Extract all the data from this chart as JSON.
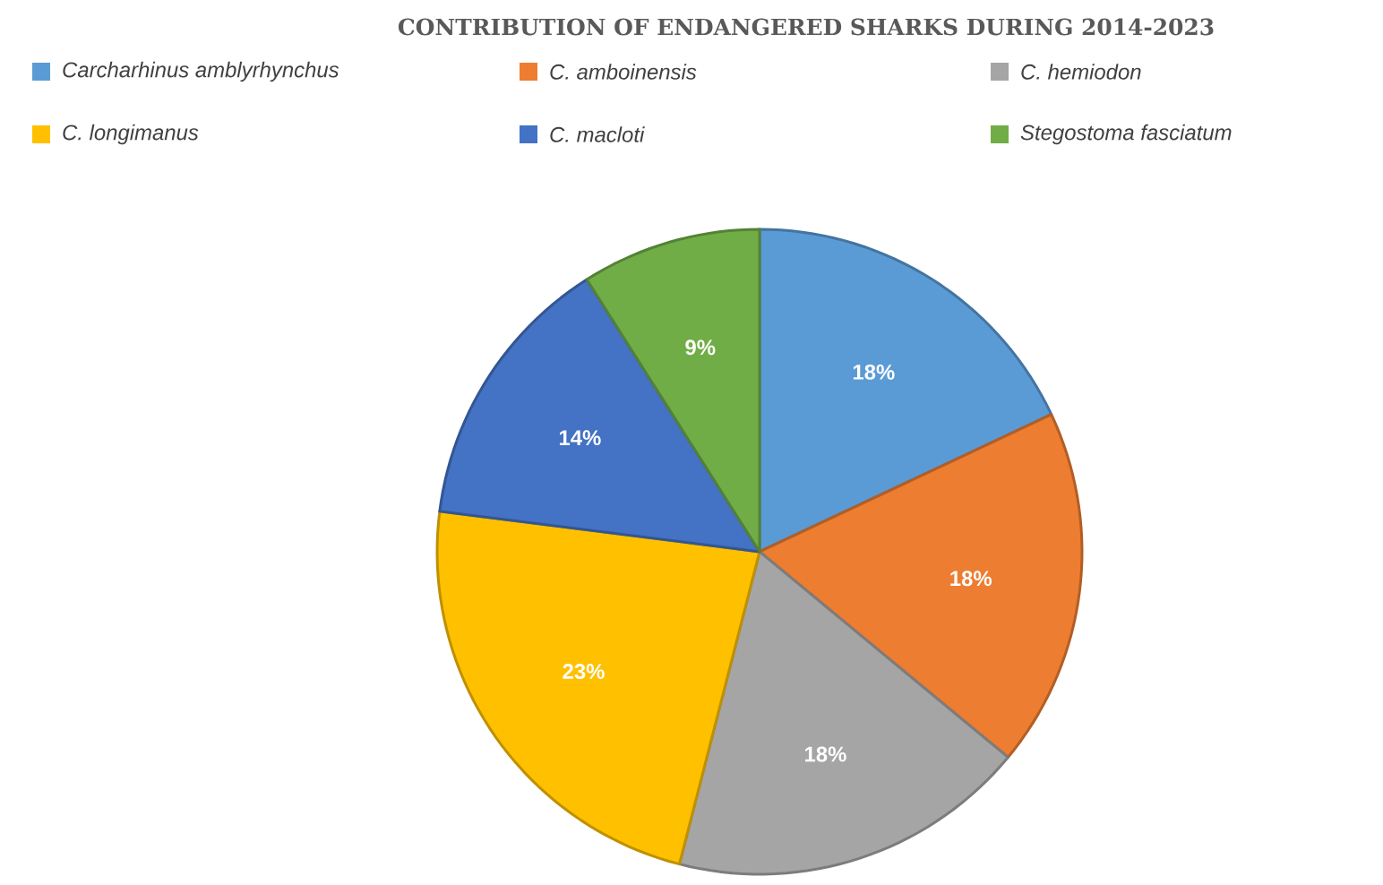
{
  "chart_data": {
    "type": "pie",
    "title": "CONTRIBUTION OF ENDANGERED SHARKS DURING 2014-2023",
    "categories": [
      "Carcharhinus amblyrhynchus",
      "C. amboinensis",
      "C. hemiodon",
      "C. longimanus",
      "C. macloti",
      "Stegostoma fasciatum"
    ],
    "values": [
      18,
      18,
      18,
      23,
      14,
      9
    ],
    "value_labels": [
      "18%",
      "18%",
      "18%",
      "23%",
      "14%",
      "9%"
    ],
    "colors": [
      "#5b9bd5",
      "#ed7d31",
      "#a5a5a5",
      "#ffc000",
      "#4472c4",
      "#70ad47"
    ],
    "legend": "top"
  }
}
